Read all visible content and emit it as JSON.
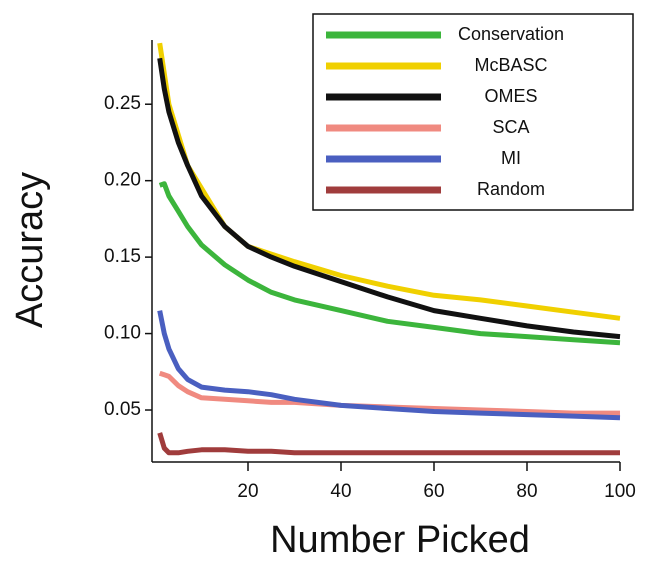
{
  "chart_data": {
    "type": "line",
    "x_label": "Number Picked",
    "y_label": "Accuracy",
    "x": [
      1,
      2,
      3,
      5,
      7,
      10,
      15,
      20,
      25,
      30,
      40,
      50,
      60,
      70,
      80,
      90,
      100
    ],
    "series": [
      {
        "name": "Conservation",
        "color": "#3cb53c",
        "values": [
          0.197,
          0.198,
          0.19,
          0.18,
          0.17,
          0.158,
          0.145,
          0.135,
          0.127,
          0.122,
          0.115,
          0.108,
          0.104,
          0.1,
          0.098,
          0.096,
          0.094
        ]
      },
      {
        "name": "McBASC",
        "color": "#f0d000",
        "values": [
          0.29,
          0.27,
          0.25,
          0.23,
          0.21,
          0.195,
          0.17,
          0.157,
          0.152,
          0.147,
          0.138,
          0.131,
          0.125,
          0.122,
          0.118,
          0.114,
          0.11
        ]
      },
      {
        "name": "OMES",
        "color": "#111111",
        "values": [
          0.28,
          0.26,
          0.245,
          0.225,
          0.21,
          0.19,
          0.17,
          0.157,
          0.15,
          0.144,
          0.134,
          0.124,
          0.115,
          0.11,
          0.105,
          0.101,
          0.098
        ]
      },
      {
        "name": "SCA",
        "color": "#f08a80",
        "values": [
          0.074,
          0.073,
          0.072,
          0.066,
          0.062,
          0.058,
          0.057,
          0.056,
          0.055,
          0.055,
          0.053,
          0.052,
          0.051,
          0.05,
          0.049,
          0.048,
          0.048
        ]
      },
      {
        "name": "MI",
        "color": "#4a5fc0",
        "values": [
          0.115,
          0.1,
          0.09,
          0.077,
          0.07,
          0.065,
          0.063,
          0.062,
          0.06,
          0.057,
          0.053,
          0.051,
          0.049,
          0.048,
          0.047,
          0.046,
          0.045
        ]
      },
      {
        "name": "Random",
        "color": "#a03c3c",
        "values": [
          0.035,
          0.025,
          0.022,
          0.022,
          0.023,
          0.024,
          0.024,
          0.023,
          0.023,
          0.022,
          0.022,
          0.022,
          0.022,
          0.022,
          0.022,
          0.022,
          0.022
        ]
      }
    ],
    "xlim": [
      0,
      100
    ],
    "xticks": [
      20,
      40,
      60,
      80,
      100
    ],
    "ylim": [
      0.016,
      0.292
    ],
    "yticks": [
      0.05,
      {
        "value": 0.1,
        "label": "0.10"
      },
      0.15,
      {
        "value": 0.2,
        "label": "0.20"
      },
      0.25
    ],
    "grid": false,
    "legend": "upper right"
  }
}
